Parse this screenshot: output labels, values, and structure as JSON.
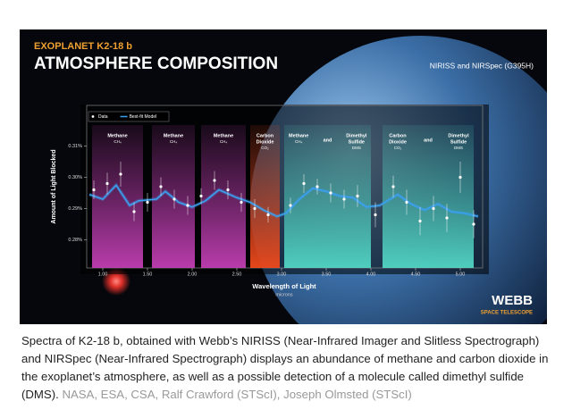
{
  "chart_data": {
    "type": "line",
    "kicker": "EXOPLANET K2-18 b",
    "title": "ATMOSPHERE COMPOSITION",
    "subtitle": "NIRISS and NIRSpec (G395H)",
    "brand": "WEBB",
    "brand_sub": "SPACE TELESCOPE",
    "y_label": "Amount of Light Blocked",
    "x_label": "Wavelength of Light",
    "x_unit": "microns",
    "xlim": [
      0.82,
      5.25
    ],
    "ylim": [
      0.271,
      0.323
    ],
    "xticks": [
      {
        "value": 1,
        "label": "1.00"
      },
      {
        "value": 1.5,
        "label": "1.50"
      },
      {
        "value": 2,
        "label": "2.00"
      },
      {
        "value": 2.5,
        "label": "2.50"
      },
      {
        "value": 3,
        "label": "3.00"
      },
      {
        "value": 3.5,
        "label": "3.50"
      },
      {
        "value": 4,
        "label": "4.00"
      },
      {
        "value": 4.5,
        "label": "4.50"
      },
      {
        "value": 5,
        "label": "5.00"
      }
    ],
    "yticks": [
      {
        "value": 0.28,
        "label": "0.28%"
      },
      {
        "value": 0.29,
        "label": "0.29%"
      },
      {
        "value": 0.3,
        "label": "0.30%"
      },
      {
        "value": 0.31,
        "label": "0.31%"
      }
    ],
    "regions": [
      {
        "x0": 0.88,
        "x1": 1.45,
        "color": "#c23fb4",
        "labels": [
          [
            "Methane",
            "CH₄"
          ]
        ]
      },
      {
        "x0": 1.55,
        "x1": 2.03,
        "color": "#c23fb4",
        "labels": [
          [
            "Methane",
            "CH₄"
          ]
        ]
      },
      {
        "x0": 2.1,
        "x1": 2.6,
        "color": "#c23fb4",
        "labels": [
          [
            "Methane",
            "CH₄"
          ]
        ]
      },
      {
        "x0": 2.65,
        "x1": 2.98,
        "color": "#f04a1c",
        "labels": [
          [
            "Carbon",
            "Dioxide",
            "CO₂"
          ]
        ]
      },
      {
        "x0": 3.03,
        "x1": 4.0,
        "color": "#52d6c4",
        "labels": [
          [
            "Methane",
            "CH₄"
          ],
          [
            "and"
          ],
          [
            "Dimethyl",
            "Sulfide",
            "DMS"
          ]
        ]
      },
      {
        "x0": 4.13,
        "x1": 5.15,
        "color": "#52d6c4",
        "labels": [
          [
            "Carbon",
            "Dioxide",
            "CO₂"
          ],
          [
            "and"
          ],
          [
            "Dimethyl",
            "Sulfide",
            "DMS"
          ]
        ]
      }
    ],
    "series": [
      {
        "name": "Best-fit Model",
        "color": "#3aa0f0",
        "x": [
          0.85,
          1.0,
          1.15,
          1.3,
          1.4,
          1.6,
          1.7,
          1.85,
          2.0,
          2.15,
          2.3,
          2.5,
          2.65,
          2.8,
          2.95,
          3.05,
          3.2,
          3.35,
          3.5,
          3.65,
          3.8,
          3.95,
          4.1,
          4.3,
          4.45,
          4.6,
          4.75,
          4.9,
          5.05,
          5.2
        ],
        "values": [
          0.2945,
          0.293,
          0.2975,
          0.291,
          0.2925,
          0.293,
          0.2955,
          0.292,
          0.2905,
          0.2925,
          0.296,
          0.2935,
          0.292,
          0.2895,
          0.2875,
          0.2885,
          0.293,
          0.2965,
          0.2955,
          0.294,
          0.2935,
          0.2905,
          0.291,
          0.2945,
          0.2915,
          0.2895,
          0.2915,
          0.289,
          0.2885,
          0.2875
        ]
      },
      {
        "name": "Data",
        "color": "#ffffff",
        "x": [
          0.9,
          1.05,
          1.2,
          1.35,
          1.5,
          1.65,
          1.8,
          1.95,
          2.1,
          2.25,
          2.4,
          2.55,
          2.7,
          2.85,
          3.1,
          3.25,
          3.4,
          3.55,
          3.7,
          3.85,
          4.05,
          4.25,
          4.4,
          4.55,
          4.7,
          4.85,
          5.0,
          5.15
        ],
        "values": [
          0.296,
          0.298,
          0.301,
          0.289,
          0.292,
          0.297,
          0.293,
          0.291,
          0.294,
          0.299,
          0.296,
          0.292,
          0.29,
          0.288,
          0.291,
          0.298,
          0.297,
          0.295,
          0.293,
          0.294,
          0.288,
          0.297,
          0.292,
          0.286,
          0.29,
          0.287,
          0.3,
          0.285
        ],
        "errors": [
          0.003,
          0.0035,
          0.004,
          0.003,
          0.003,
          0.003,
          0.003,
          0.003,
          0.0025,
          0.003,
          0.003,
          0.003,
          0.003,
          0.0025,
          0.0025,
          0.003,
          0.0025,
          0.003,
          0.003,
          0.0035,
          0.004,
          0.0035,
          0.004,
          0.0045,
          0.004,
          0.0045,
          0.005,
          0.0045
        ]
      }
    ]
  },
  "caption": {
    "text": "Spectra of K2-18 b, obtained with Webb’s NIRISS (Near-Infrared Imager and Slitless Spectrograph) and NIRSpec (Near-Infrared Spectrograph) displays an abundance of methane and carbon dioxide in the exoplanet’s atmosphere, as well as a possible detection of a molecule called dimethyl sulfide (DMS).",
    "credit": "NASA, ESA, CSA, Ralf Crawford (STScI), Joseph Olmsted (STScI)"
  }
}
